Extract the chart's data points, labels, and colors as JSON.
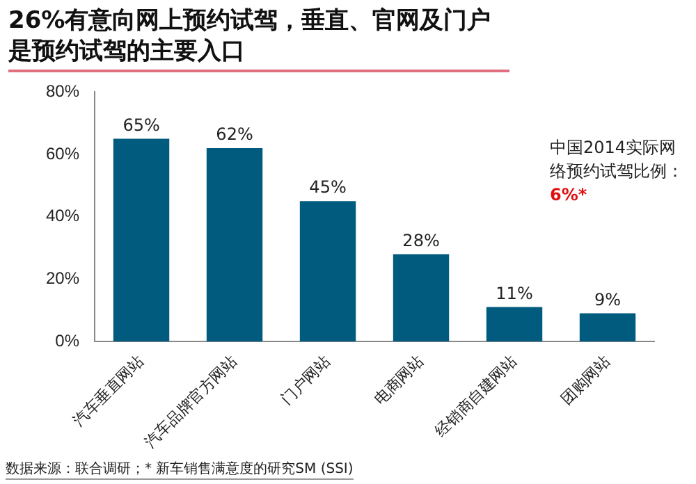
{
  "chart_data": {
    "type": "bar",
    "title": "26%有意向网上预约试驾，垂直、官网及门户是预约试驾的主要入口",
    "categories": [
      "汽车垂直网站",
      "汽车品牌官方网站",
      "门户网站",
      "电商网站",
      "经销商自建网站",
      "团购网站"
    ],
    "values": [
      65,
      62,
      45,
      28,
      11,
      9
    ],
    "value_labels": [
      "65%",
      "62%",
      "45%",
      "28%",
      "11%",
      "9%"
    ],
    "color": "#005b7f",
    "ylim": [
      0,
      80
    ],
    "yticks": [
      {
        "value": 0,
        "label": "0%"
      },
      {
        "value": 20,
        "label": "20%"
      },
      {
        "value": 40,
        "label": "40%"
      },
      {
        "value": 60,
        "label": "60%"
      },
      {
        "value": 80,
        "label": "80%"
      }
    ],
    "legend": false,
    "annotations": [
      "中国2014实际网络预约试驾比例：",
      "6%*",
      "数据来源：联合调研；* 新车销售满意度的研究SM (SSI)"
    ]
  }
}
